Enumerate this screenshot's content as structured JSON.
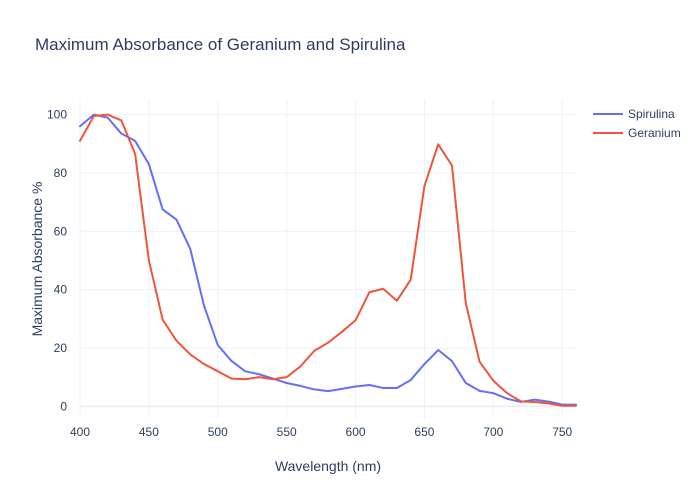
{
  "chart_data": {
    "type": "line",
    "title": "Maximum Absorbance of Geranium and Spirulina",
    "xlabel": "Wavelength (nm)",
    "ylabel": "Maximum Absorbance %",
    "xlim": [
      400,
      760
    ],
    "ylim": [
      -4,
      105
    ],
    "xticks": [
      400,
      450,
      500,
      550,
      600,
      650,
      700,
      750
    ],
    "yticks": [
      0,
      20,
      40,
      60,
      80,
      100
    ],
    "grid": true,
    "legend_position": "top-right",
    "x": [
      400,
      410,
      420,
      430,
      440,
      450,
      460,
      470,
      480,
      490,
      500,
      510,
      520,
      530,
      540,
      550,
      560,
      570,
      580,
      590,
      600,
      610,
      620,
      630,
      640,
      650,
      660,
      670,
      680,
      690,
      700,
      710,
      720,
      730,
      740,
      750,
      760
    ],
    "series": [
      {
        "name": "Spirulina",
        "color": "#636efa",
        "values": [
          96,
          100,
          99,
          93.5,
          91,
          83,
          67.5,
          64,
          54,
          34.5,
          21,
          15.5,
          12,
          11,
          9.5,
          8,
          7,
          5.8,
          5.2,
          6,
          6.8,
          7.3,
          6.3,
          6.3,
          9,
          14.5,
          19.3,
          15.5,
          8,
          5.3,
          4.5,
          2.6,
          1.5,
          2.3,
          1.6,
          0.6,
          0.6
        ]
      },
      {
        "name": "Geranium",
        "color": "#ef553b",
        "values": [
          91,
          99.5,
          100,
          98,
          86.5,
          50,
          29.7,
          22.5,
          17.8,
          14.5,
          12,
          9.5,
          9.3,
          10,
          9.3,
          10,
          13.7,
          19,
          21.8,
          25.5,
          29.5,
          39.1,
          40.3,
          36.2,
          43.4,
          75.5,
          89.8,
          82.5,
          35.4,
          15.3,
          8.8,
          4.5,
          1.7,
          1.5,
          1,
          0.2,
          0.2
        ]
      }
    ]
  }
}
